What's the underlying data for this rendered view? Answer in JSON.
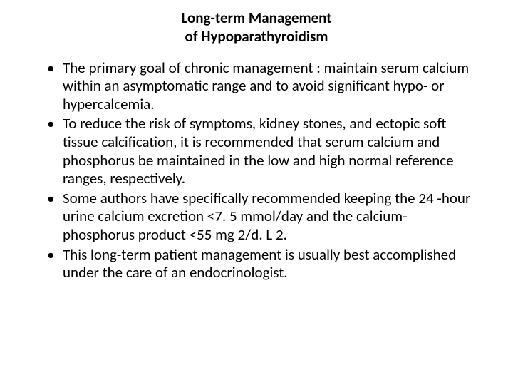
{
  "background_color": "#ffffff",
  "text_color": "#000000",
  "font_family": "Calibri, 'Segoe UI', Arial, sans-serif",
  "title": {
    "line1": "Long-term Management",
    "line2": "of Hypoparathyroidism",
    "font_size_pt": 21,
    "font_weight": 700,
    "align": "center"
  },
  "bullets": {
    "font_size_pt": 21,
    "line_height": 1.22,
    "marker": "•",
    "items": [
      "The primary goal of chronic management : maintain serum calcium within an asymptomatic range and to avoid significant hypo- or hypercalcemia.",
      "To reduce the risk of symptoms, kidney stones, and ectopic soft tissue calcification, it is recommended that serum calcium and phosphorus be maintained in the low and high normal reference ranges, respectively.",
      "Some authors have specifically recommended keeping the 24 -hour urine calcium excretion <7. 5 mmol/day and the calcium-phosphorus product <55 mg 2/d. L 2.",
      "This long-term patient management is usually best accomplished under the care of an endocrinologist."
    ]
  }
}
